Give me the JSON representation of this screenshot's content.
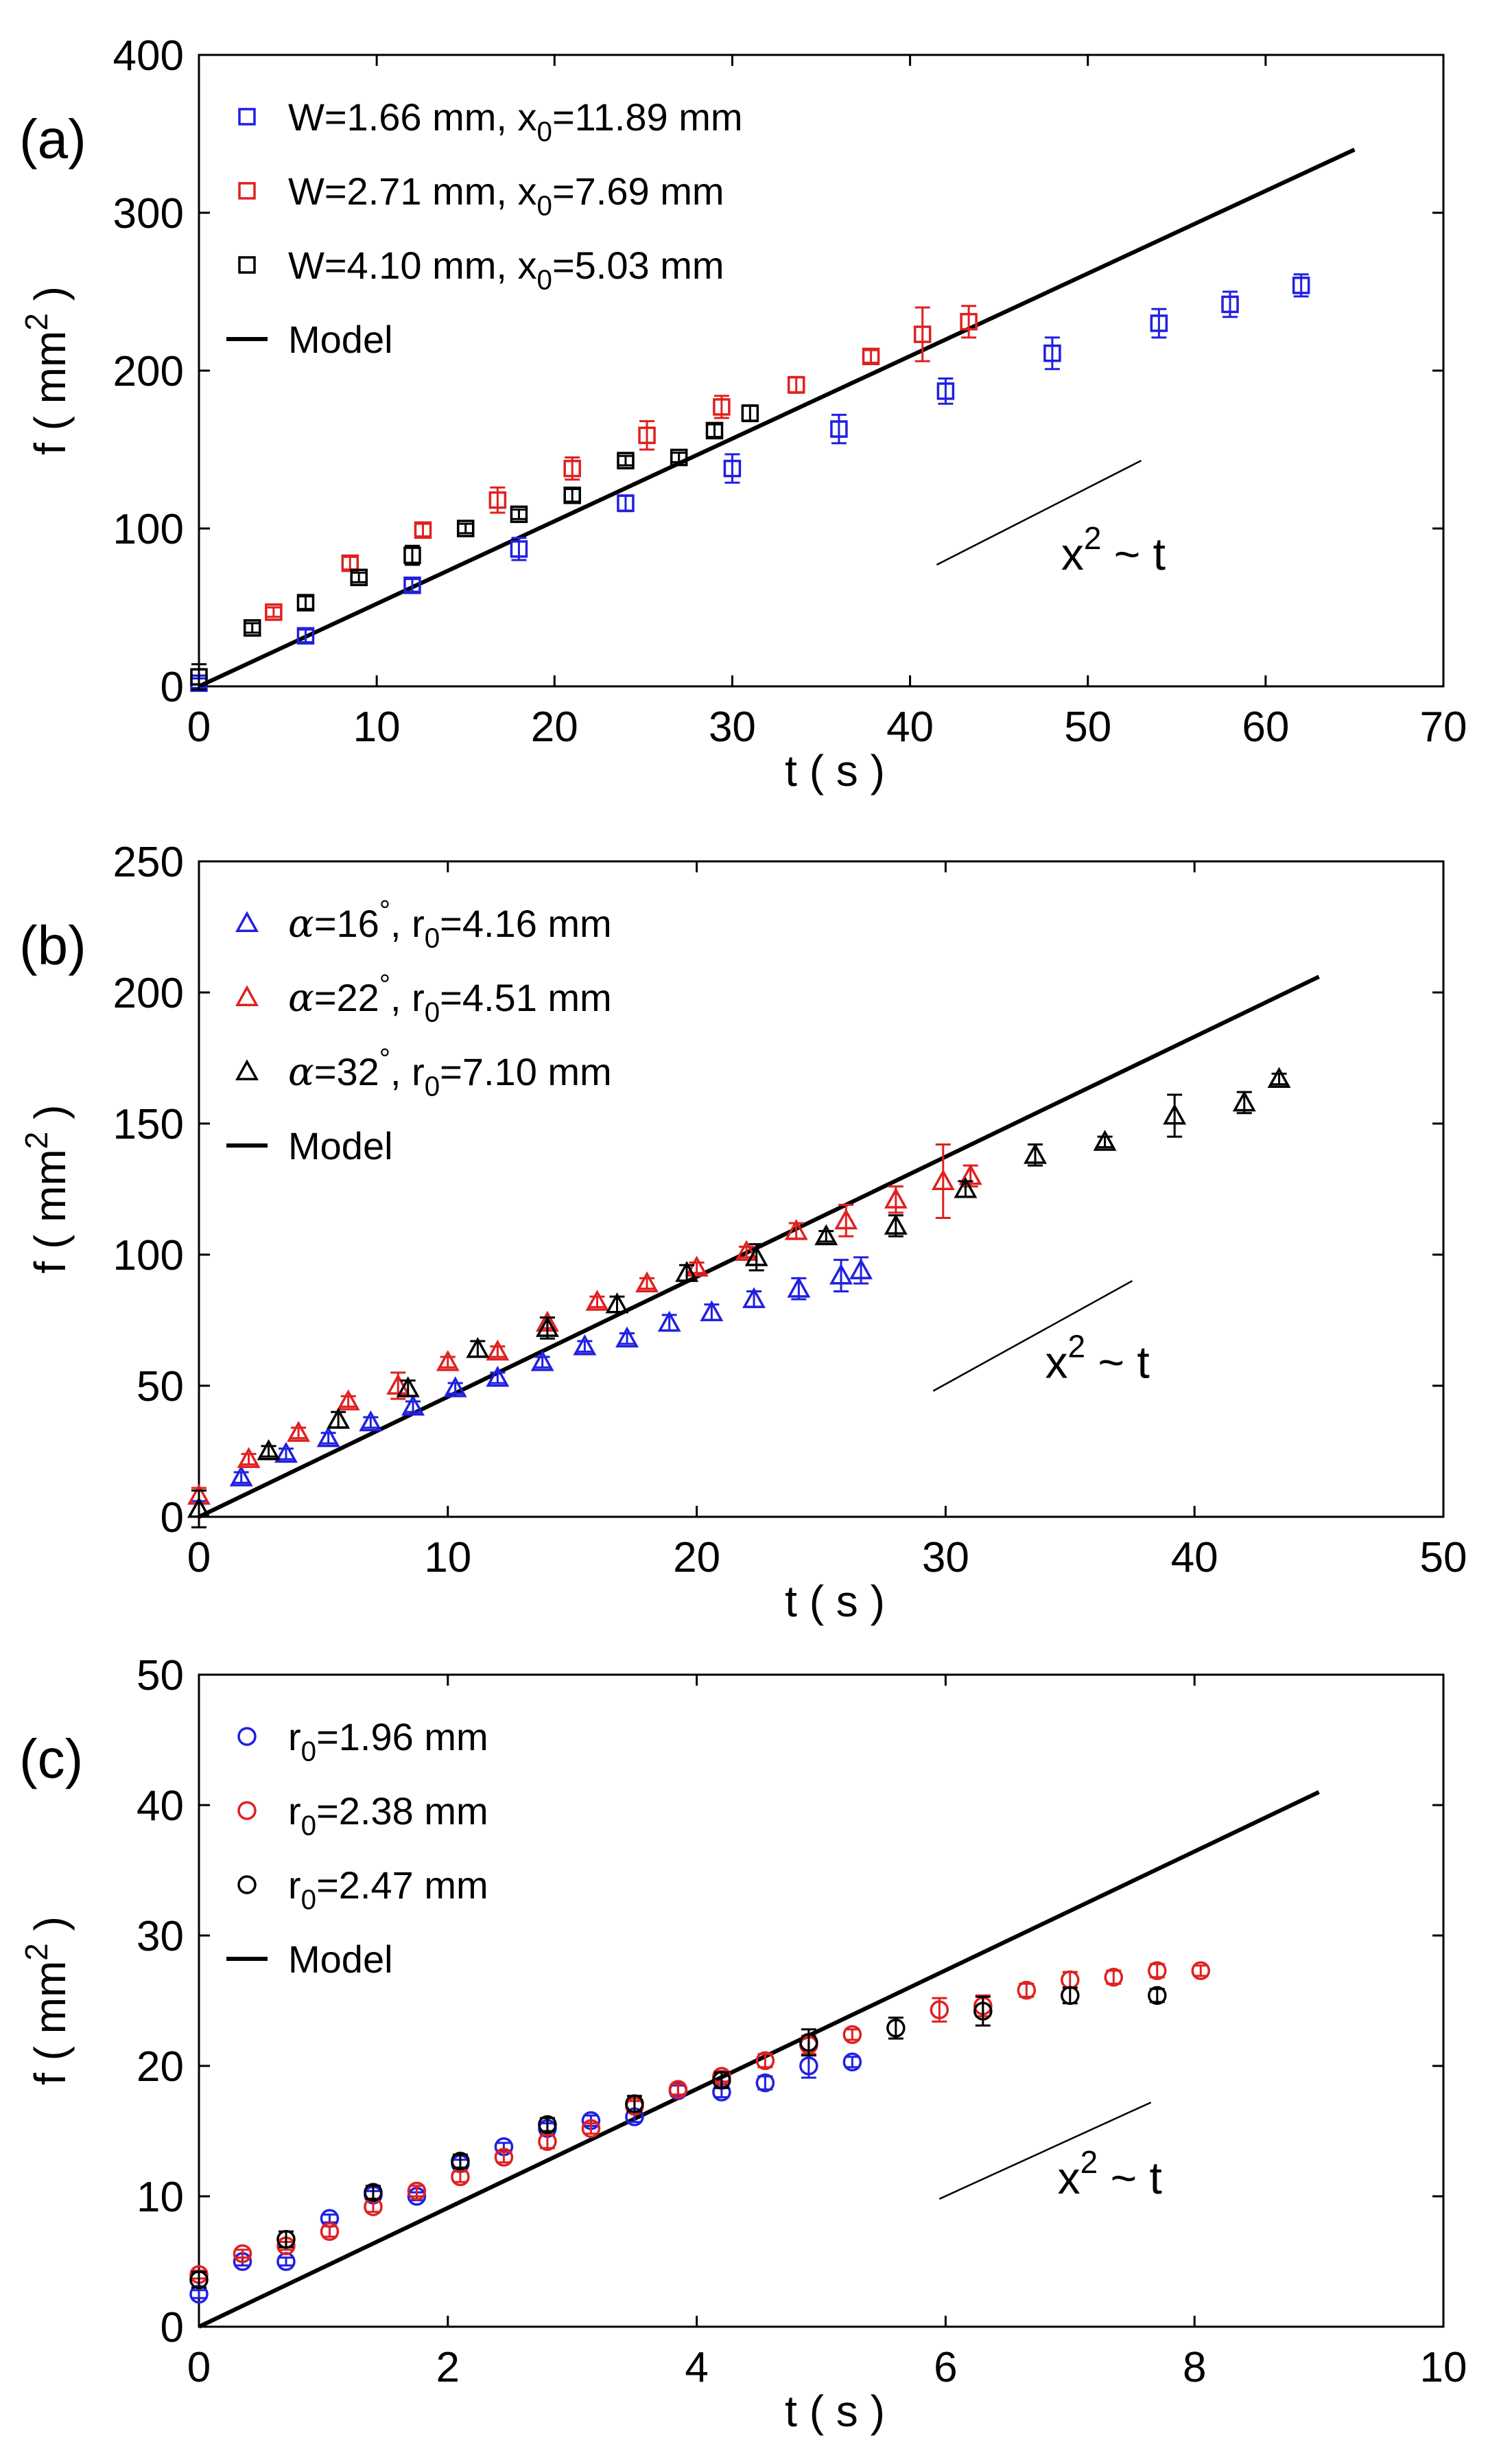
{
  "chart_data": [
    {
      "type": "scatter",
      "panel_label": "(a)",
      "marker": "square",
      "xlabel": "t ( s )",
      "ylabel": "f ( mm",
      "ylabel_sup": "2",
      "ylabel_end": ")",
      "xlim": [
        0,
        70
      ],
      "ylim": [
        0,
        400
      ],
      "xticks": [
        0,
        10,
        20,
        30,
        40,
        50,
        60,
        70
      ],
      "yticks": [
        0,
        100,
        200,
        300,
        400
      ],
      "legend": [
        {
          "segments": [
            [
              "W=1.66 mm, x",
              "n"
            ],
            [
              "0",
              "sub"
            ],
            [
              "=11.89 mm",
              "n"
            ]
          ],
          "color": "#2020e0",
          "kind": "marker"
        },
        {
          "segments": [
            [
              "W=2.71 mm, x",
              "n"
            ],
            [
              "0",
              "sub"
            ],
            [
              "=7.69 mm",
              "n"
            ]
          ],
          "color": "#e02020",
          "kind": "marker"
        },
        {
          "segments": [
            [
              "W=4.10 mm, x",
              "n"
            ],
            [
              "0",
              "sub"
            ],
            [
              "=5.03 mm",
              "n"
            ]
          ],
          "color": "#000000",
          "kind": "marker"
        },
        {
          "segments": [
            [
              "Model",
              "n"
            ]
          ],
          "color": "#000000",
          "kind": "line"
        }
      ],
      "model": {
        "x": [
          0,
          65
        ],
        "y": [
          0,
          340
        ]
      },
      "scaling_line": {
        "x": [
          41.5,
          53
        ],
        "y": [
          77,
          143
        ]
      },
      "scaling_text": {
        "x": 48.5,
        "y": 74,
        "base": "x",
        "sup": "2",
        "rest": " ~ t"
      },
      "series": [
        {
          "name": "W=1.66 mm, x0=11.89 mm",
          "color": "#2020e0",
          "x": [
            0,
            6,
            12,
            18,
            24,
            30,
            36,
            42,
            48,
            54,
            58,
            62
          ],
          "y": [
            2,
            32,
            64,
            87,
            116,
            138,
            163,
            187,
            211,
            230,
            242,
            254
          ],
          "err": [
            3,
            4,
            4,
            7,
            5,
            9,
            9,
            8,
            10,
            9,
            8,
            7
          ]
        },
        {
          "name": "W=2.71 mm, x0=7.69 mm",
          "color": "#e02020",
          "x": [
            4.2,
            8.5,
            12.6,
            16.8,
            21,
            25.2,
            29.4,
            33.6,
            37.8,
            40.7,
            43.3
          ],
          "y": [
            47,
            78,
            99,
            118,
            138,
            159,
            177,
            191,
            209,
            223,
            231
          ],
          "err": [
            3,
            4,
            4,
            8,
            7,
            9,
            7,
            5,
            4,
            17,
            10
          ]
        },
        {
          "name": "W=4.10 mm, x0=5.03 mm",
          "color": "#000000",
          "x": [
            0,
            3,
            6,
            9,
            12,
            15,
            18,
            21,
            24,
            27,
            29,
            31
          ],
          "y": [
            6,
            37,
            53,
            69,
            83,
            100,
            109,
            121,
            143,
            145,
            162,
            173
          ],
          "err": [
            8,
            3,
            4,
            3,
            6,
            3,
            3,
            4,
            3,
            3,
            4,
            5
          ]
        }
      ]
    },
    {
      "type": "scatter",
      "panel_label": "(b)",
      "marker": "triangle",
      "xlabel": "t ( s )",
      "ylabel": "f ( mm",
      "ylabel_sup": "2",
      "ylabel_end": ")",
      "xlim": [
        0,
        50
      ],
      "ylim": [
        0,
        250
      ],
      "xticks": [
        0,
        10,
        20,
        30,
        40,
        50
      ],
      "yticks": [
        0,
        50,
        100,
        150,
        200,
        250
      ],
      "legend": [
        {
          "segments": [
            [
              "α",
              "i"
            ],
            [
              "=16",
              "n"
            ],
            [
              "°",
              "sup"
            ],
            [
              ", r",
              "n"
            ],
            [
              "0",
              "sub"
            ],
            [
              "=4.16 mm",
              "n"
            ]
          ],
          "color": "#2020e0",
          "kind": "marker"
        },
        {
          "segments": [
            [
              "α",
              "i"
            ],
            [
              "=22",
              "n"
            ],
            [
              "°",
              "sup"
            ],
            [
              ", r",
              "n"
            ],
            [
              "0",
              "sub"
            ],
            [
              "=4.51 mm",
              "n"
            ]
          ],
          "color": "#e02020",
          "kind": "marker"
        },
        {
          "segments": [
            [
              "α",
              "i"
            ],
            [
              "=32",
              "n"
            ],
            [
              "°",
              "sup"
            ],
            [
              ", r",
              "n"
            ],
            [
              "0",
              "sub"
            ],
            [
              "=7.10 mm",
              "n"
            ]
          ],
          "color": "#000000",
          "kind": "marker"
        },
        {
          "segments": [
            [
              "Model",
              "n"
            ]
          ],
          "color": "#000000",
          "kind": "line"
        }
      ],
      "model": {
        "x": [
          0,
          45
        ],
        "y": [
          0,
          206
        ]
      },
      "scaling_line": {
        "x": [
          29.5,
          37.5
        ],
        "y": [
          48,
          90
        ]
      },
      "scaling_text": {
        "x": 34,
        "y": 53,
        "base": "x",
        "sup": "2",
        "rest": " ~ t"
      },
      "series": [
        {
          "name": "α=16°, r0=4.16 mm",
          "color": "#2020e0",
          "x": [
            0,
            1.7,
            3.5,
            5.2,
            6.9,
            8.6,
            10.3,
            12,
            13.8,
            15.5,
            17.2,
            18.9,
            20.6,
            22.3,
            24.1,
            25.8,
            26.6
          ],
          "y": [
            3,
            15,
            24,
            30,
            36,
            42,
            49,
            53,
            59,
            65,
            68,
            74,
            78,
            83,
            87,
            92,
            94
          ],
          "err": [
            3,
            2,
            2,
            2,
            2,
            2,
            2,
            2,
            2,
            2,
            2,
            3,
            3,
            3,
            4,
            6,
            5
          ]
        },
        {
          "name": "α=22°, r0=4.51 mm",
          "color": "#e02020",
          "x": [
            0,
            2,
            4,
            6,
            8,
            10,
            12,
            14,
            16,
            18,
            20,
            22,
            24,
            26,
            28,
            29.9,
            31
          ],
          "y": [
            8,
            22,
            32,
            44,
            50,
            59,
            63,
            74,
            82,
            89,
            95,
            101,
            109,
            113,
            121,
            128,
            130
          ],
          "err": [
            3,
            2,
            2,
            2,
            5,
            2,
            2,
            2,
            2,
            2,
            2,
            2,
            3,
            6,
            5,
            14,
            4
          ]
        },
        {
          "name": "α=32°, r0=7.10 mm",
          "color": "#000000",
          "x": [
            0,
            2.8,
            5.6,
            8.4,
            11.2,
            14,
            16.8,
            19.6,
            22.4,
            25.2,
            28,
            30.8,
            33.6,
            36.4,
            39.2,
            42,
            43.4
          ],
          "y": [
            3,
            25,
            37,
            49,
            64,
            72,
            81,
            93,
            99,
            107,
            111,
            125,
            138,
            143,
            153,
            158,
            167
          ],
          "err": [
            7,
            2,
            3,
            3,
            3,
            4,
            3,
            3,
            5,
            2,
            4,
            3,
            4,
            2,
            8,
            4,
            2
          ]
        }
      ]
    },
    {
      "type": "scatter",
      "panel_label": "(c)",
      "marker": "circle",
      "xlabel": "t ( s )",
      "ylabel": "f ( mm",
      "ylabel_sup": "2",
      "ylabel_end": ")",
      "xlim": [
        0,
        10
      ],
      "ylim": [
        0,
        50
      ],
      "xticks": [
        0,
        2,
        4,
        6,
        8,
        10
      ],
      "yticks": [
        0,
        10,
        20,
        30,
        40,
        50
      ],
      "legend": [
        {
          "segments": [
            [
              "r",
              "n"
            ],
            [
              "0",
              "sub"
            ],
            [
              "=1.96 mm",
              "n"
            ]
          ],
          "color": "#2020e0",
          "kind": "marker"
        },
        {
          "segments": [
            [
              "r",
              "n"
            ],
            [
              "0",
              "sub"
            ],
            [
              "=2.38 mm",
              "n"
            ]
          ],
          "color": "#e02020",
          "kind": "marker"
        },
        {
          "segments": [
            [
              "r",
              "n"
            ],
            [
              "0",
              "sub"
            ],
            [
              "=2.47 mm",
              "n"
            ]
          ],
          "color": "#000000",
          "kind": "marker"
        },
        {
          "segments": [
            [
              "Model",
              "n"
            ]
          ],
          "color": "#000000",
          "kind": "line"
        }
      ],
      "model": {
        "x": [
          0,
          9
        ],
        "y": [
          0,
          41
        ]
      },
      "scaling_line": {
        "x": [
          5.95,
          7.65
        ],
        "y": [
          9.8,
          17.2
        ]
      },
      "scaling_text": {
        "x": 6.9,
        "y": 10.2,
        "base": "x",
        "sup": "2",
        "rest": " ~ t"
      },
      "series": [
        {
          "name": "r0=1.96 mm",
          "color": "#2020e0",
          "x": [
            0,
            0.35,
            0.7,
            1.05,
            1.4,
            1.75,
            2.1,
            2.45,
            2.8,
            3.15,
            3.5,
            3.85,
            4.2,
            4.55,
            4.9,
            5.25
          ],
          "y": [
            2.5,
            5,
            5,
            8.3,
            10.1,
            10,
            12.5,
            13.8,
            15.2,
            15.8,
            16.1,
            18.1,
            18,
            18.7,
            20,
            20.3
          ],
          "err": [
            0.3,
            0.3,
            0.3,
            0.3,
            0.3,
            0.3,
            0.3,
            0.3,
            0.4,
            0.4,
            0.4,
            0.4,
            0.4,
            0.5,
            0.9,
            0.4
          ]
        },
        {
          "name": "r0=2.38 mm",
          "color": "#e02020",
          "x": [
            0,
            0.35,
            0.7,
            1.05,
            1.4,
            1.75,
            2.1,
            2.45,
            2.8,
            3.15,
            3.5,
            3.85,
            4.2,
            4.55,
            4.9,
            5.25,
            5.95,
            6.3,
            6.65,
            7,
            7.35,
            7.7,
            8.05
          ],
          "y": [
            4,
            5.6,
            6.2,
            7.3,
            9.2,
            10.4,
            11.5,
            13,
            14.2,
            15.2,
            16.9,
            18.2,
            19.2,
            20.4,
            21.6,
            22.4,
            24.3,
            24.6,
            25.8,
            26.6,
            26.8,
            27.3,
            27.3
          ],
          "err": [
            0.3,
            0.3,
            0.3,
            0.4,
            0.4,
            0.4,
            0.4,
            0.4,
            0.5,
            0.4,
            0.4,
            0.4,
            0.4,
            0.5,
            0.7,
            0.4,
            0.9,
            0.8,
            0.5,
            0.6,
            0.5,
            0.5,
            0.4
          ]
        },
        {
          "name": "r0=2.47 mm",
          "color": "#000000",
          "x": [
            0,
            0.7,
            1.4,
            2.1,
            2.8,
            3.5,
            4.2,
            4.9,
            5.6,
            6.3,
            7,
            7.7
          ],
          "y": [
            3.6,
            6.7,
            10.3,
            12.7,
            15.5,
            17.1,
            18.9,
            21.8,
            22.9,
            24.2,
            25.4,
            25.4
          ],
          "err": [
            0.6,
            0.6,
            0.5,
            0.5,
            0.5,
            0.6,
            0.6,
            1.0,
            0.8,
            1.1,
            0.6,
            0.5
          ]
        }
      ]
    }
  ]
}
